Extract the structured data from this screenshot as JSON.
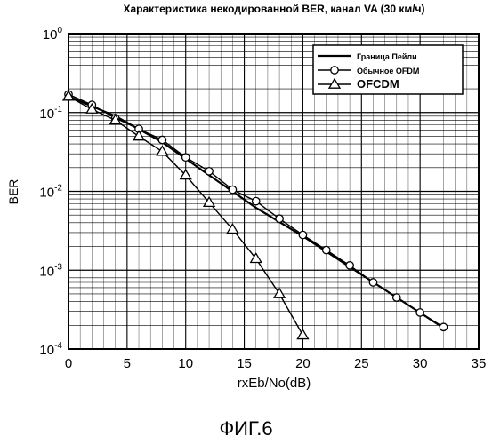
{
  "figure": {
    "caption": "ФИГ.6"
  },
  "chart_data": {
    "type": "line",
    "title": "Характеристика некодированной BER, канал VA (30 км/ч)",
    "xlabel": "rxEb/No(dB)",
    "ylabel": "BER",
    "xlim": [
      0,
      35
    ],
    "ylim": [
      0.0001,
      1
    ],
    "yscale": "log",
    "x_ticks": [
      "0",
      "5",
      "10",
      "15",
      "20",
      "25",
      "30",
      "35"
    ],
    "y_ticks": [
      {
        "base": "10",
        "exp": "0"
      },
      {
        "base": "10",
        "exp": "-1"
      },
      {
        "base": "10",
        "exp": "-2"
      },
      {
        "base": "10",
        "exp": "-3"
      },
      {
        "base": "10",
        "exp": "-4"
      }
    ],
    "grid": true,
    "legend_position": "top-right",
    "series": [
      {
        "name": "Граница Пейли",
        "marker": "none",
        "color": "#000000",
        "x": [
          0,
          4,
          8,
          12,
          16,
          20,
          24,
          28,
          32
        ],
        "y": [
          0.16,
          0.09,
          0.042,
          0.016,
          0.0062,
          0.0027,
          0.0011,
          0.00045,
          0.000185
        ]
      },
      {
        "name": "Обычное OFDM",
        "marker": "circle",
        "color": "#000000",
        "x": [
          0,
          2,
          4,
          6,
          8,
          10,
          12,
          14,
          16,
          18,
          20,
          22,
          24,
          26,
          28,
          30,
          32
        ],
        "y": [
          0.17,
          0.125,
          0.085,
          0.062,
          0.045,
          0.027,
          0.018,
          0.0105,
          0.0075,
          0.0045,
          0.0028,
          0.0018,
          0.00115,
          0.0007,
          0.00045,
          0.00029,
          0.00019
        ]
      },
      {
        "name": "OFCDM",
        "marker": "triangle",
        "color": "#000000",
        "x": [
          0,
          2,
          4,
          6,
          8,
          10,
          12,
          14,
          16,
          18,
          20
        ],
        "y": [
          0.16,
          0.11,
          0.08,
          0.05,
          0.032,
          0.016,
          0.0072,
          0.0033,
          0.0014,
          0.0005,
          0.00015
        ]
      }
    ]
  }
}
